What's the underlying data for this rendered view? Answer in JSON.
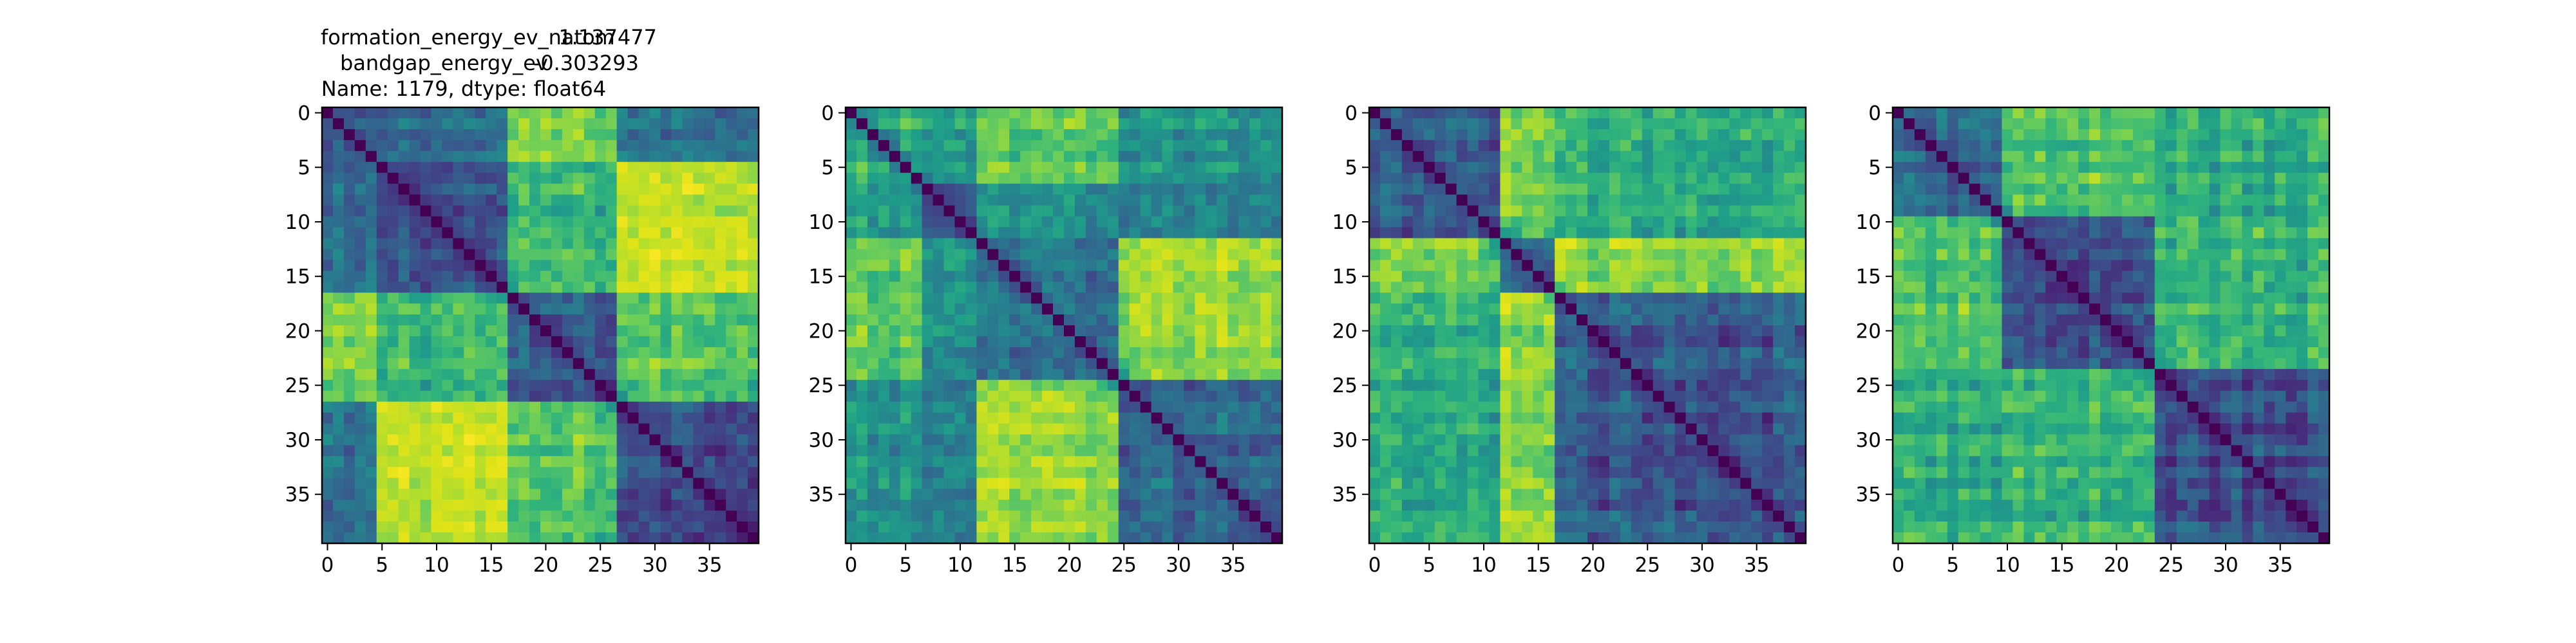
{
  "figure": {
    "title_lines": [
      {
        "key": "formation_energy_ev_natom",
        "value": "1.137477"
      },
      {
        "key": "bandgap_energy_ev",
        "value": "-0.303293"
      },
      {
        "text": "Name: 1179, dtype: float64"
      }
    ]
  },
  "chart_data": [
    {
      "type": "heatmap",
      "size": 40,
      "colormap": "viridis",
      "title": "formation_energy_ev_natom    1.137477\nbandgap_energy_ev           -0.303293\nName: 1179, dtype: float64",
      "xticks": [
        0,
        5,
        10,
        15,
        20,
        25,
        30,
        35
      ],
      "yticks": [
        0,
        5,
        10,
        15,
        20,
        25,
        30,
        35
      ],
      "xlabel": "",
      "ylabel": "",
      "diagonal": 0,
      "blocks": [
        [
          0,
          4
        ],
        [
          5,
          16
        ],
        [
          17,
          26
        ],
        [
          27,
          39
        ]
      ],
      "block_matrix": [
        [
          0.2,
          0.3,
          0.7,
          0.32
        ],
        [
          0.3,
          0.22,
          0.6,
          0.85
        ],
        [
          0.7,
          0.6,
          0.25,
          0.65
        ],
        [
          0.32,
          0.85,
          0.65,
          0.22
        ]
      ]
    },
    {
      "type": "heatmap",
      "size": 40,
      "colormap": "viridis",
      "title": "",
      "xticks": [
        0,
        5,
        10,
        15,
        20,
        25,
        30,
        35
      ],
      "yticks": [
        0,
        5,
        10,
        15,
        20,
        25,
        30,
        35
      ],
      "xlabel": "",
      "ylabel": "",
      "diagonal": 0,
      "blocks": [
        [
          0,
          6
        ],
        [
          7,
          11
        ],
        [
          12,
          24
        ],
        [
          25,
          39
        ]
      ],
      "block_matrix": [
        [
          0.55,
          0.5,
          0.65,
          0.45
        ],
        [
          0.5,
          0.25,
          0.45,
          0.4
        ],
        [
          0.65,
          0.45,
          0.3,
          0.75
        ],
        [
          0.45,
          0.4,
          0.75,
          0.3
        ]
      ]
    },
    {
      "type": "heatmap",
      "size": 40,
      "colormap": "viridis",
      "title": "",
      "xticks": [
        0,
        5,
        10,
        15,
        20,
        25,
        30,
        35
      ],
      "yticks": [
        0,
        5,
        10,
        15,
        20,
        25,
        30,
        35
      ],
      "xlabel": "",
      "ylabel": "",
      "diagonal": 0,
      "blocks": [
        [
          0,
          11
        ],
        [
          12,
          16
        ],
        [
          17,
          39
        ]
      ],
      "block_matrix": [
        [
          0.25,
          0.7,
          0.55
        ],
        [
          0.7,
          0.3,
          0.75
        ],
        [
          0.55,
          0.75,
          0.25
        ]
      ]
    },
    {
      "type": "heatmap",
      "size": 40,
      "colormap": "viridis",
      "title": "",
      "xticks": [
        0,
        5,
        10,
        15,
        20,
        25,
        30,
        35
      ],
      "yticks": [
        0,
        5,
        10,
        15,
        20,
        25,
        30,
        35
      ],
      "xlabel": "",
      "ylabel": "",
      "diagonal": 0,
      "blocks": [
        [
          0,
          9
        ],
        [
          10,
          23
        ],
        [
          24,
          39
        ]
      ],
      "block_matrix": [
        [
          0.3,
          0.65,
          0.55
        ],
        [
          0.65,
          0.25,
          0.6
        ],
        [
          0.55,
          0.6,
          0.22
        ]
      ]
    }
  ]
}
